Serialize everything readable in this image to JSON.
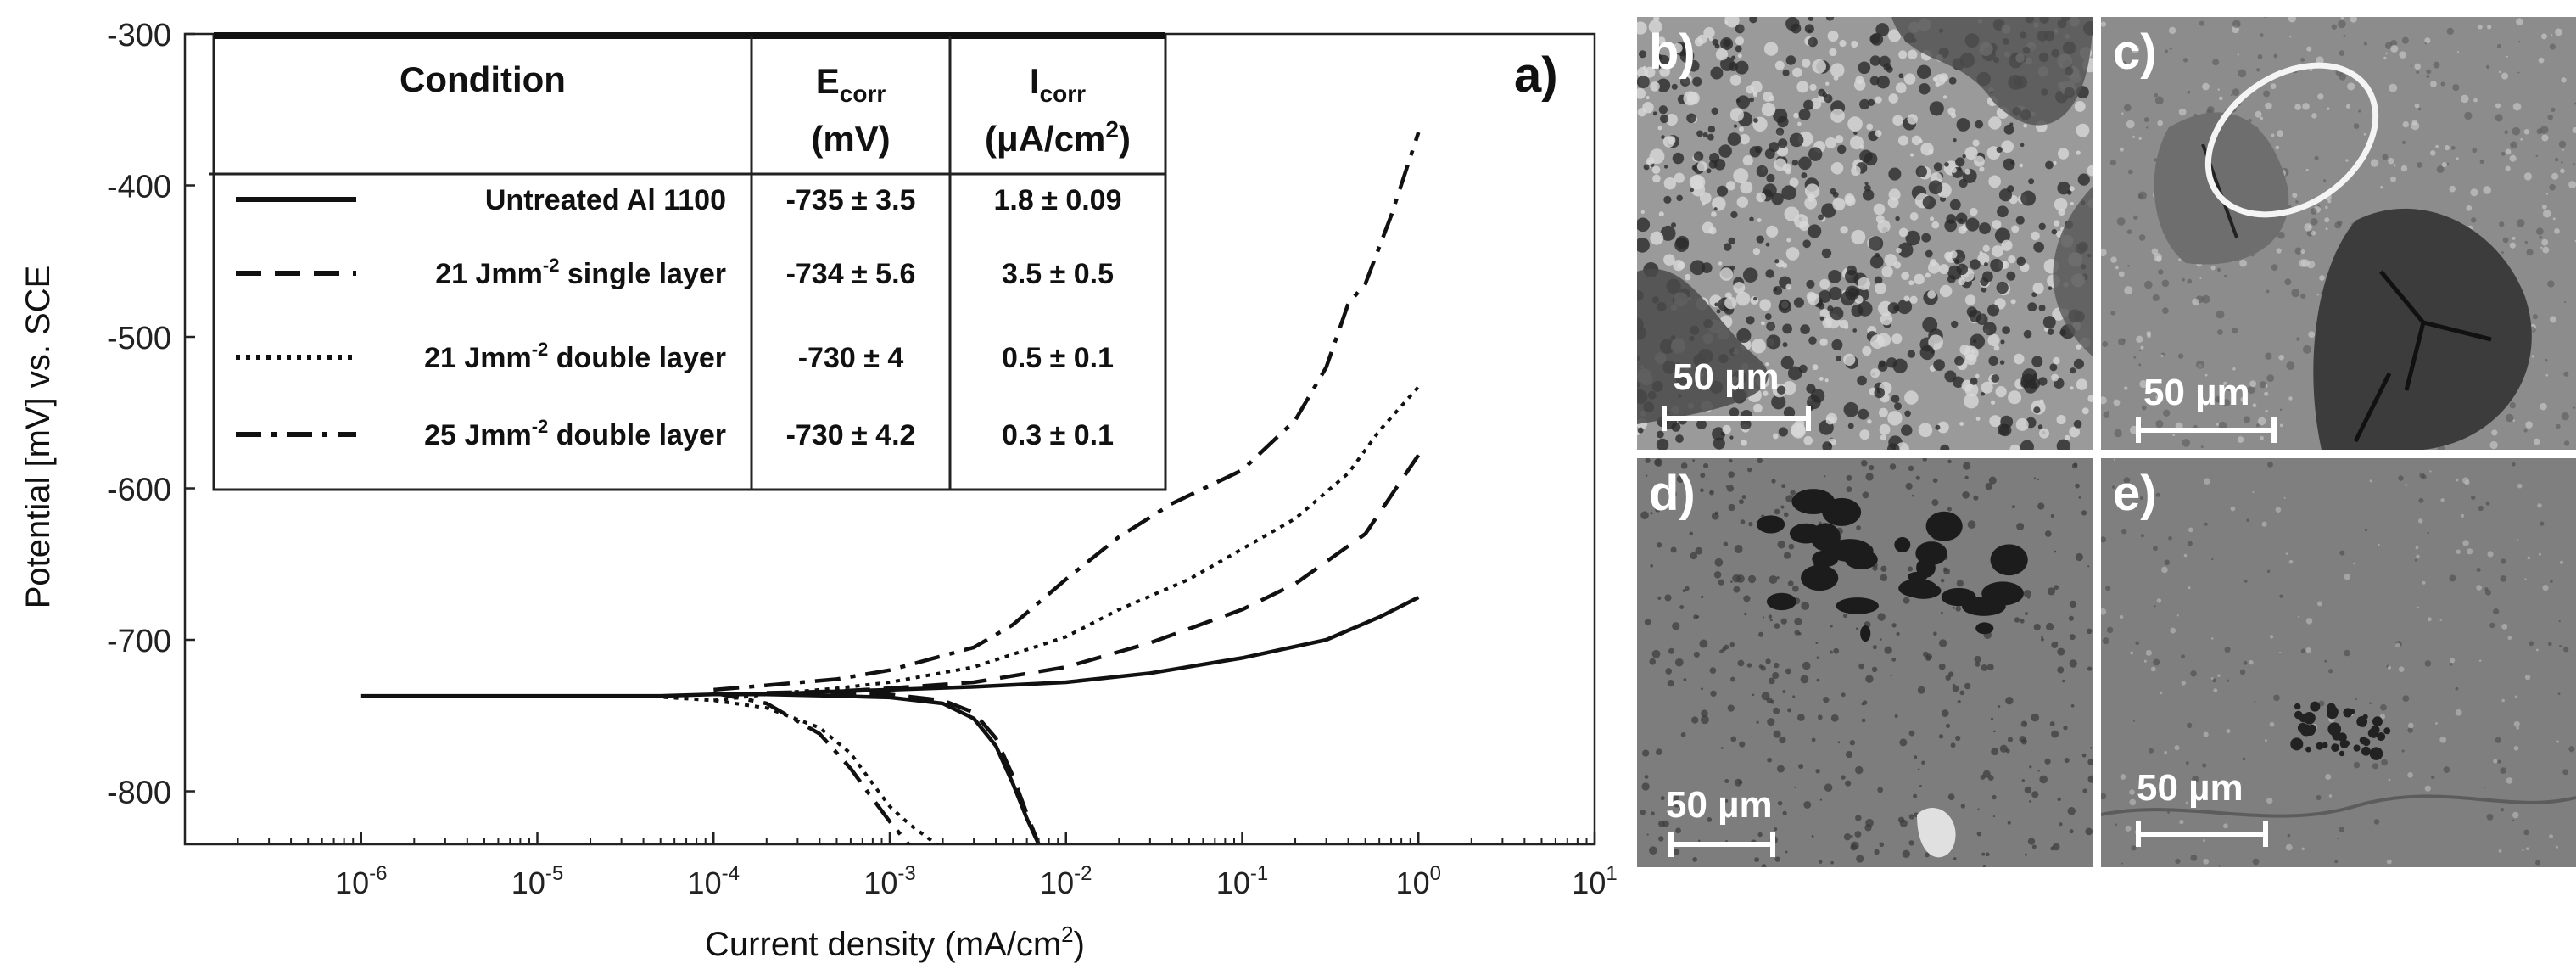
{
  "chart_data": {
    "type": "line",
    "panel_label": "a)",
    "xlabel": "Current density (mA/cm",
    "xlabel_sup": "2",
    "xlabel_tail": ")",
    "ylabel": "Potential [mV] vs. SCE",
    "x_scale": "log",
    "xlim": [
      1e-07,
      10
    ],
    "ylim": [
      -835,
      -300
    ],
    "x_ticks": [
      {
        "v": 1e-06,
        "base": "10",
        "exp": "-6"
      },
      {
        "v": 1e-05,
        "base": "10",
        "exp": "-5"
      },
      {
        "v": 0.0001,
        "base": "10",
        "exp": "-4"
      },
      {
        "v": 0.001,
        "base": "10",
        "exp": "-3"
      },
      {
        "v": 0.01,
        "base": "10",
        "exp": "-2"
      },
      {
        "v": 0.1,
        "base": "10",
        "exp": "-1"
      },
      {
        "v": 1,
        "base": "10",
        "exp": "0"
      },
      {
        "v": 10,
        "base": "10",
        "exp": "1"
      }
    ],
    "y_ticks": [
      -300,
      -400,
      -500,
      -600,
      -700,
      -800
    ],
    "grid": false,
    "legend_placement": "top-left",
    "table": {
      "headers": [
        {
          "main": "Condition",
          "sub": "",
          "unit": "",
          "unit_sup": "",
          "unit_tail": ""
        },
        {
          "main": "E",
          "sub": "corr",
          "unit": "(mV)",
          "unit_sup": "",
          "unit_tail": ""
        },
        {
          "main": "I",
          "sub": "corr",
          "unit": "(μA/cm",
          "unit_sup": "2",
          "unit_tail": ")"
        }
      ],
      "rows": [
        {
          "label_pre": "Untreated Al 1100",
          "label_sup": "",
          "label_post": "",
          "ecorr": "-735 ± 3.5",
          "icorr": "1.8 ± 0.09",
          "style": "solid"
        },
        {
          "label_pre": "21 Jmm",
          "label_sup": "-2",
          "label_post": " single layer",
          "ecorr": "-734 ± 5.6",
          "icorr": "3.5 ± 0.5",
          "style": "dashed"
        },
        {
          "label_pre": "21 Jmm",
          "label_sup": "-2",
          "label_post": " double layer",
          "ecorr": "-730 ± 4",
          "icorr": "0.5 ± 0.1",
          "style": "dotted"
        },
        {
          "label_pre": "25 Jmm",
          "label_sup": "-2",
          "label_post": " double layer",
          "ecorr": "-730 ± 4.2",
          "icorr": "0.3 ± 0.1",
          "style": "dashdot"
        }
      ]
    },
    "series": [
      {
        "key": "untreated",
        "style": "solid",
        "x": [
          1e-06,
          1e-05,
          5e-05,
          0.0001,
          0.0002,
          0.0005,
          0.001,
          0.002,
          0.003,
          0.004,
          0.005,
          0.006,
          0.007
        ],
        "y": [
          -737,
          -737,
          -737,
          -736,
          -736,
          -737,
          -738,
          -742,
          -752,
          -770,
          -795,
          -818,
          -835
        ]
      },
      {
        "key": "untreated",
        "style": "solid",
        "x": [
          0.0002,
          0.0005,
          0.001,
          0.003,
          0.01,
          0.03,
          0.1,
          0.3,
          0.6,
          1
        ],
        "y": [
          -736,
          -734,
          -733,
          -731,
          -728,
          -722,
          -712,
          -700,
          -685,
          -672
        ]
      },
      {
        "key": "single",
        "style": "dashed",
        "x": [
          0.0001,
          0.0002,
          0.0005,
          0.001,
          0.002,
          0.003,
          0.004,
          0.005,
          0.006,
          0.007
        ],
        "y": [
          -736,
          -736,
          -736,
          -736,
          -740,
          -748,
          -765,
          -790,
          -815,
          -835
        ]
      },
      {
        "key": "single",
        "style": "dashed",
        "x": [
          0.0002,
          0.0005,
          0.001,
          0.003,
          0.01,
          0.03,
          0.1,
          0.2,
          0.5,
          1
        ],
        "y": [
          -735,
          -734,
          -732,
          -728,
          -718,
          -702,
          -680,
          -663,
          -630,
          -578
        ]
      },
      {
        "key": "double21",
        "style": "dotted",
        "x": [
          4e-05,
          0.0001,
          0.0002,
          0.0004,
          0.0006,
          0.0008,
          0.001,
          0.0013,
          0.0017,
          0.002
        ],
        "y": [
          -737,
          -740,
          -745,
          -758,
          -775,
          -795,
          -810,
          -822,
          -832,
          -838
        ]
      },
      {
        "key": "double21",
        "style": "dotted",
        "x": [
          0.0001,
          0.0002,
          0.0005,
          0.001,
          0.003,
          0.01,
          0.02,
          0.05,
          0.1,
          0.2,
          0.4,
          0.6,
          1
        ],
        "y": [
          -740,
          -736,
          -732,
          -728,
          -718,
          -698,
          -680,
          -660,
          -640,
          -620,
          -590,
          -562,
          -533
        ]
      },
      {
        "key": "double25",
        "style": "dashdot",
        "x": [
          0.0001,
          0.0002,
          0.0004,
          0.0006,
          0.0008,
          0.001,
          0.0013
        ],
        "y": [
          -735,
          -742,
          -762,
          -785,
          -805,
          -820,
          -836
        ]
      },
      {
        "key": "double25",
        "style": "dashdot",
        "x": [
          0.0001,
          0.0002,
          0.0005,
          0.001,
          0.003,
          0.005,
          0.01,
          0.02,
          0.04,
          0.1,
          0.2,
          0.3,
          0.4,
          0.5,
          0.7,
          1
        ],
        "y": [
          -733,
          -730,
          -726,
          -720,
          -705,
          -690,
          -660,
          -632,
          -610,
          -588,
          -555,
          -520,
          -478,
          -465,
          -420,
          -365
        ]
      }
    ]
  },
  "micrographs": [
    {
      "label": "b)",
      "scale_label": "50 µm",
      "texture": "porous"
    },
    {
      "label": "c)",
      "scale_label": "50 µm",
      "texture": "cracked"
    },
    {
      "label": "d)",
      "scale_label": "50 µm",
      "texture": "pitted"
    },
    {
      "label": "e)",
      "scale_label": "50 µm",
      "texture": "smooth"
    }
  ]
}
